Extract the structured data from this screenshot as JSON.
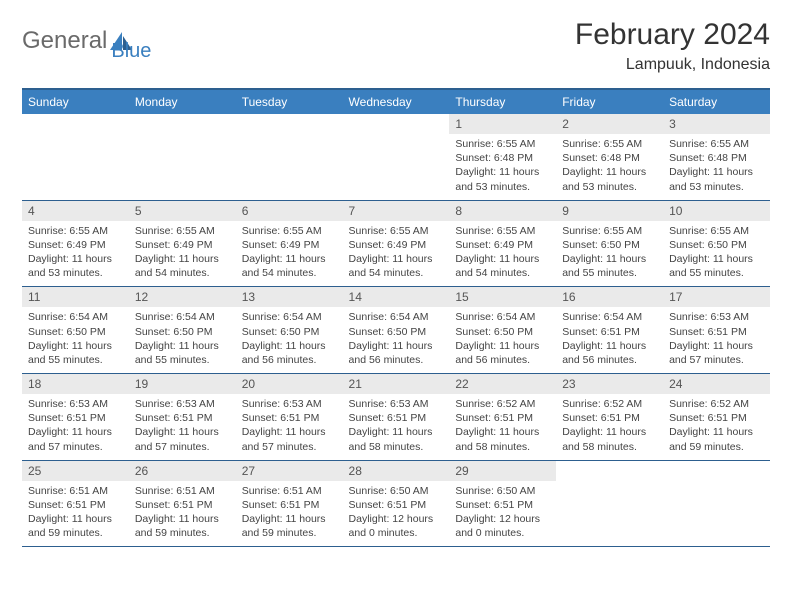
{
  "logo": {
    "part1": "General",
    "part2": "Blue"
  },
  "title": "February 2024",
  "location": "Lampuuk, Indonesia",
  "colors": {
    "header_bg": "#3a7fbf",
    "header_border": "#2d5f8f",
    "daynum_bg": "#eaeaea",
    "text": "#333333"
  },
  "dayNames": [
    "Sunday",
    "Monday",
    "Tuesday",
    "Wednesday",
    "Thursday",
    "Friday",
    "Saturday"
  ],
  "weeks": [
    [
      null,
      null,
      null,
      null,
      {
        "n": "1",
        "sr": "6:55 AM",
        "ss": "6:48 PM",
        "dl": "11 hours and 53 minutes."
      },
      {
        "n": "2",
        "sr": "6:55 AM",
        "ss": "6:48 PM",
        "dl": "11 hours and 53 minutes."
      },
      {
        "n": "3",
        "sr": "6:55 AM",
        "ss": "6:48 PM",
        "dl": "11 hours and 53 minutes."
      }
    ],
    [
      {
        "n": "4",
        "sr": "6:55 AM",
        "ss": "6:49 PM",
        "dl": "11 hours and 53 minutes."
      },
      {
        "n": "5",
        "sr": "6:55 AM",
        "ss": "6:49 PM",
        "dl": "11 hours and 54 minutes."
      },
      {
        "n": "6",
        "sr": "6:55 AM",
        "ss": "6:49 PM",
        "dl": "11 hours and 54 minutes."
      },
      {
        "n": "7",
        "sr": "6:55 AM",
        "ss": "6:49 PM",
        "dl": "11 hours and 54 minutes."
      },
      {
        "n": "8",
        "sr": "6:55 AM",
        "ss": "6:49 PM",
        "dl": "11 hours and 54 minutes."
      },
      {
        "n": "9",
        "sr": "6:55 AM",
        "ss": "6:50 PM",
        "dl": "11 hours and 55 minutes."
      },
      {
        "n": "10",
        "sr": "6:55 AM",
        "ss": "6:50 PM",
        "dl": "11 hours and 55 minutes."
      }
    ],
    [
      {
        "n": "11",
        "sr": "6:54 AM",
        "ss": "6:50 PM",
        "dl": "11 hours and 55 minutes."
      },
      {
        "n": "12",
        "sr": "6:54 AM",
        "ss": "6:50 PM",
        "dl": "11 hours and 55 minutes."
      },
      {
        "n": "13",
        "sr": "6:54 AM",
        "ss": "6:50 PM",
        "dl": "11 hours and 56 minutes."
      },
      {
        "n": "14",
        "sr": "6:54 AM",
        "ss": "6:50 PM",
        "dl": "11 hours and 56 minutes."
      },
      {
        "n": "15",
        "sr": "6:54 AM",
        "ss": "6:50 PM",
        "dl": "11 hours and 56 minutes."
      },
      {
        "n": "16",
        "sr": "6:54 AM",
        "ss": "6:51 PM",
        "dl": "11 hours and 56 minutes."
      },
      {
        "n": "17",
        "sr": "6:53 AM",
        "ss": "6:51 PM",
        "dl": "11 hours and 57 minutes."
      }
    ],
    [
      {
        "n": "18",
        "sr": "6:53 AM",
        "ss": "6:51 PM",
        "dl": "11 hours and 57 minutes."
      },
      {
        "n": "19",
        "sr": "6:53 AM",
        "ss": "6:51 PM",
        "dl": "11 hours and 57 minutes."
      },
      {
        "n": "20",
        "sr": "6:53 AM",
        "ss": "6:51 PM",
        "dl": "11 hours and 57 minutes."
      },
      {
        "n": "21",
        "sr": "6:53 AM",
        "ss": "6:51 PM",
        "dl": "11 hours and 58 minutes."
      },
      {
        "n": "22",
        "sr": "6:52 AM",
        "ss": "6:51 PM",
        "dl": "11 hours and 58 minutes."
      },
      {
        "n": "23",
        "sr": "6:52 AM",
        "ss": "6:51 PM",
        "dl": "11 hours and 58 minutes."
      },
      {
        "n": "24",
        "sr": "6:52 AM",
        "ss": "6:51 PM",
        "dl": "11 hours and 59 minutes."
      }
    ],
    [
      {
        "n": "25",
        "sr": "6:51 AM",
        "ss": "6:51 PM",
        "dl": "11 hours and 59 minutes."
      },
      {
        "n": "26",
        "sr": "6:51 AM",
        "ss": "6:51 PM",
        "dl": "11 hours and 59 minutes."
      },
      {
        "n": "27",
        "sr": "6:51 AM",
        "ss": "6:51 PM",
        "dl": "11 hours and 59 minutes."
      },
      {
        "n": "28",
        "sr": "6:50 AM",
        "ss": "6:51 PM",
        "dl": "12 hours and 0 minutes."
      },
      {
        "n": "29",
        "sr": "6:50 AM",
        "ss": "6:51 PM",
        "dl": "12 hours and 0 minutes."
      },
      null,
      null
    ]
  ],
  "labels": {
    "sunrise": "Sunrise:",
    "sunset": "Sunset:",
    "daylight": "Daylight:"
  }
}
